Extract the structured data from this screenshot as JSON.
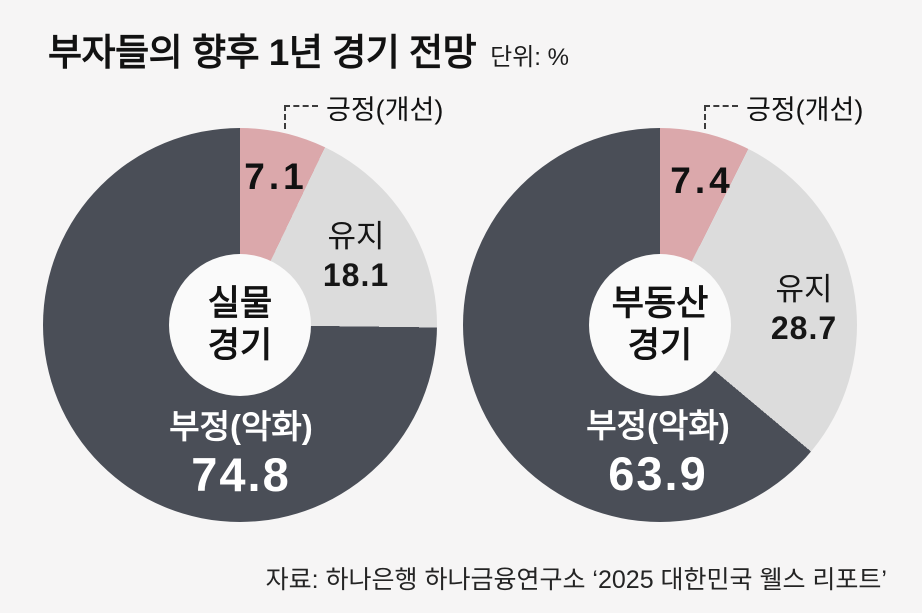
{
  "header": {
    "title": "부자들의 향후 1년 경기 전망",
    "unit": "단위: %"
  },
  "colors": {
    "background": "#f6f5f5",
    "hole": "#fafafa",
    "positive": "#dba8ab",
    "maintain": "#dcdcdc",
    "negative": "#4a4e57",
    "negative_text": "#ffffff",
    "text": "#121212"
  },
  "chart_data": [
    {
      "type": "pie",
      "subtype": "donut",
      "title": "실물 경기",
      "center_lines": [
        "실물",
        "경기"
      ],
      "categories": [
        "긍정(개선)",
        "유지",
        "부정(악화)"
      ],
      "values": [
        7.1,
        18.1,
        74.8
      ],
      "colors": [
        "#dba8ab",
        "#dcdcdc",
        "#4a4e57"
      ],
      "unit": "%",
      "start_angle_deg": 0,
      "direction": "clockwise"
    },
    {
      "type": "pie",
      "subtype": "donut",
      "title": "부동산 경기",
      "center_lines": [
        "부동산",
        "경기"
      ],
      "categories": [
        "긍정(개선)",
        "유지",
        "부정(악화)"
      ],
      "values": [
        7.4,
        28.7,
        63.9
      ],
      "colors": [
        "#dba8ab",
        "#dcdcdc",
        "#4a4e57"
      ],
      "unit": "%",
      "start_angle_deg": 0,
      "direction": "clockwise"
    }
  ],
  "footer": {
    "source": "자료: 하나은행 하나금융연구소 ‘2025 대한민국 웰스 리포트’"
  }
}
